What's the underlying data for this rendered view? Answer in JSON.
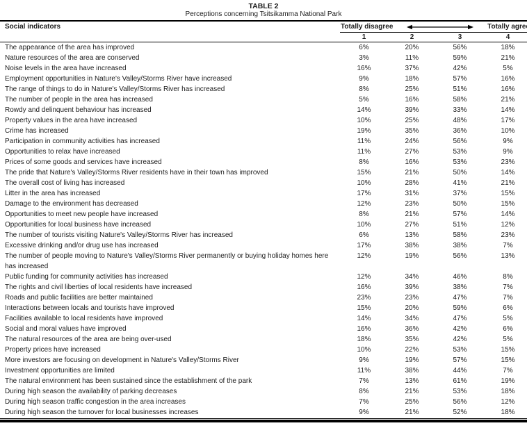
{
  "table": {
    "title": "TABLE 2",
    "subtitle": "Perceptions concerning Tsitsikamma National Park",
    "columns": {
      "indicator": "Social indicators",
      "left_label": "Totally disagree",
      "right_label": "Totally agree",
      "scale": [
        "1",
        "2",
        "3",
        "4"
      ]
    },
    "rows": [
      {
        "label": "The appearance of the area has improved",
        "values": [
          "6%",
          "20%",
          "56%",
          "18%"
        ]
      },
      {
        "label": "Nature resources of the area are conserved",
        "values": [
          "3%",
          "11%",
          "59%",
          "21%"
        ]
      },
      {
        "label": "Noise levels in the area have increased",
        "values": [
          "16%",
          "37%",
          "42%",
          "5%"
        ]
      },
      {
        "label": "Employment opportunities in Nature's Valley/Storms River have increased",
        "values": [
          "9%",
          "18%",
          "57%",
          "16%"
        ]
      },
      {
        "label": "The range of things to do in Nature's Valley/Storms River has increased",
        "values": [
          "8%",
          "25%",
          "51%",
          "16%"
        ]
      },
      {
        "label": "The number of people in the area has increased",
        "values": [
          "5%",
          "16%",
          "58%",
          "21%"
        ]
      },
      {
        "label": "Rowdy and delinquent behaviour has increased",
        "values": [
          "14%",
          "39%",
          "33%",
          "14%"
        ]
      },
      {
        "label": "Property values in the area have increased",
        "values": [
          "10%",
          "25%",
          "48%",
          "17%"
        ]
      },
      {
        "label": "Crime has increased",
        "values": [
          "19%",
          "35%",
          "36%",
          "10%"
        ]
      },
      {
        "label": "Participation in community activities has increased",
        "values": [
          "11%",
          "24%",
          "56%",
          "9%"
        ]
      },
      {
        "label": "Opportunities to relax have increased",
        "values": [
          "11%",
          "27%",
          "53%",
          "9%"
        ]
      },
      {
        "label": "Prices of some goods and services have increased",
        "values": [
          "8%",
          "16%",
          "53%",
          "23%"
        ]
      },
      {
        "label": "The pride that Nature's Valley/Storms River residents have in their town has improved",
        "values": [
          "15%",
          "21%",
          "50%",
          "14%"
        ]
      },
      {
        "label": "The overall cost of living has increased",
        "values": [
          "10%",
          "28%",
          "41%",
          "21%"
        ]
      },
      {
        "label": "Litter in the area has increased",
        "values": [
          "17%",
          "31%",
          "37%",
          "15%"
        ]
      },
      {
        "label": "Damage to the environment has decreased",
        "values": [
          "12%",
          "23%",
          "50%",
          "15%"
        ]
      },
      {
        "label": "Opportunities to meet new people have increased",
        "values": [
          "8%",
          "21%",
          "57%",
          "14%"
        ]
      },
      {
        "label": "Opportunities for local business have increased",
        "values": [
          "10%",
          "27%",
          "51%",
          "12%"
        ]
      },
      {
        "label": "The number of tourists visiting Nature's Valley/Storms River has increased",
        "values": [
          "6%",
          "13%",
          "58%",
          "23%"
        ]
      },
      {
        "label": "Excessive drinking and/or drug use has increased",
        "values": [
          "17%",
          "38%",
          "38%",
          "7%"
        ]
      },
      {
        "label": "The number of people moving to Nature's Valley/Storms River permanently or buying holiday homes here has increased",
        "values": [
          "12%",
          "19%",
          "56%",
          "13%"
        ]
      },
      {
        "label": "Public funding for community activities has increased",
        "values": [
          "12%",
          "34%",
          "46%",
          "8%"
        ]
      },
      {
        "label": "The rights and civil liberties of local residents have increased",
        "values": [
          "16%",
          "39%",
          "38%",
          "7%"
        ]
      },
      {
        "label": "Roads and public facilities are better maintained",
        "values": [
          "23%",
          "23%",
          "47%",
          "7%"
        ]
      },
      {
        "label": "Interactions between locals and tourists have improved",
        "values": [
          "15%",
          "20%",
          "59%",
          "6%"
        ]
      },
      {
        "label": "Facilities available to local residents have improved",
        "values": [
          "14%",
          "34%",
          "47%",
          "5%"
        ]
      },
      {
        "label": "Social and moral values have improved",
        "values": [
          "16%",
          "36%",
          "42%",
          "6%"
        ]
      },
      {
        "label": "The natural resources of the area are being over-used",
        "values": [
          "18%",
          "35%",
          "42%",
          "5%"
        ]
      },
      {
        "label": "Property prices have increased",
        "values": [
          "10%",
          "22%",
          "53%",
          "15%"
        ]
      },
      {
        "label": "More investors are focusing on development in Nature's Valley/Storms River",
        "values": [
          "9%",
          "19%",
          "57%",
          "15%"
        ]
      },
      {
        "label": "Investment opportunities are limited",
        "values": [
          "11%",
          "38%",
          "44%",
          "7%"
        ]
      },
      {
        "label": "The natural environment has been sustained since the establishment of the park",
        "values": [
          "7%",
          "13%",
          "61%",
          "19%"
        ]
      },
      {
        "label": "During high season the availability of parking decreases",
        "values": [
          "8%",
          "21%",
          "53%",
          "18%"
        ]
      },
      {
        "label": "During high season traffic congestion in the area increases",
        "values": [
          "7%",
          "25%",
          "56%",
          "12%"
        ]
      },
      {
        "label": "During high season the turnover for local businesses increases",
        "values": [
          "9%",
          "21%",
          "52%",
          "18%"
        ]
      }
    ]
  },
  "colors": {
    "text": "#1c1c1c",
    "rule": "#000000",
    "background": "#ffffff"
  }
}
